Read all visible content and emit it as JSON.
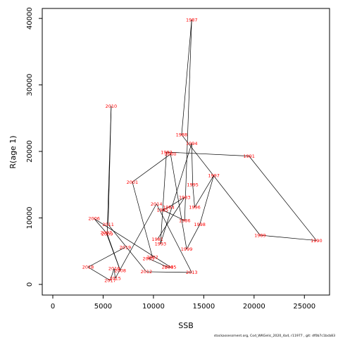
{
  "chart_data": {
    "type": "line",
    "xlabel": "SSB",
    "ylabel": "R(age 1)",
    "xlim": [
      -1050,
      27500
    ],
    "ylim": [
      -1600,
      41500
    ],
    "x_ticks": [
      0,
      5000,
      10000,
      15000,
      20000,
      25000
    ],
    "x_tick_labels": [
      "0",
      "5000",
      "10000",
      "15000",
      "20000",
      "25000"
    ],
    "y_ticks": [
      0,
      10000,
      20000,
      30000,
      40000
    ],
    "y_tick_labels": [
      "0",
      "10000",
      "20000",
      "30000",
      "40000"
    ],
    "line_color": "#000000",
    "label_color": "#ff0000",
    "footnote": "stockassessment.org, Cod_WKGelic_2020_4a4, r11977 , git: df0b7c1bcb83",
    "points": [
      {
        "label": "1987",
        "x": 13800,
        "y": 39800
      },
      {
        "label": "1988",
        "x": 12800,
        "y": 22500
      },
      {
        "label": "1989",
        "x": 20600,
        "y": 7400
      },
      {
        "label": "1990",
        "x": 26200,
        "y": 6600
      },
      {
        "label": "1991",
        "x": 19500,
        "y": 19300
      },
      {
        "label": "1992",
        "x": 11300,
        "y": 19900
      },
      {
        "label": "1993",
        "x": 10700,
        "y": 6100
      },
      {
        "label": "1994",
        "x": 13800,
        "y": 21200
      },
      {
        "label": "1995",
        "x": 13900,
        "y": 15000
      },
      {
        "label": "1996",
        "x": 14100,
        "y": 11600
      },
      {
        "label": "1997",
        "x": 16000,
        "y": 16400
      },
      {
        "label": "1998",
        "x": 14600,
        "y": 9000
      },
      {
        "label": "1999",
        "x": 13300,
        "y": 5300
      },
      {
        "label": "2000",
        "x": 11700,
        "y": 19600
      },
      {
        "label": "2001",
        "x": 7900,
        "y": 15400
      },
      {
        "label": "2002",
        "x": 9900,
        "y": 4100
      },
      {
        "label": "2003",
        "x": 9500,
        "y": 3900
      },
      {
        "label": "2004",
        "x": 11400,
        "y": 2600
      },
      {
        "label": "2005",
        "x": 11700,
        "y": 2600
      },
      {
        "label": "2006",
        "x": 4100,
        "y": 9900
      },
      {
        "label": "2007",
        "x": 5300,
        "y": 7800
      },
      {
        "label": "2008",
        "x": 6700,
        "y": 2100
      },
      {
        "label": "2009",
        "x": 5400,
        "y": 7600
      },
      {
        "label": "2010",
        "x": 5800,
        "y": 26800
      },
      {
        "label": "2011",
        "x": 5500,
        "y": 9000
      },
      {
        "label": "2012",
        "x": 9300,
        "y": 1900
      },
      {
        "label": "2013",
        "x": 13800,
        "y": 1800
      },
      {
        "label": "2014",
        "x": 10300,
        "y": 12100
      },
      {
        "label": "2015",
        "x": 6200,
        "y": 900
      },
      {
        "label": "2016",
        "x": 6100,
        "y": 2400
      },
      {
        "label": "2017",
        "x": 5700,
        "y": 600
      },
      {
        "label": "2018",
        "x": 3500,
        "y": 2600
      },
      {
        "label": "2019",
        "x": 7200,
        "y": 5600
      },
      {
        "label": "1985",
        "x": 10900,
        "y": 11200
      },
      {
        "label": "1986",
        "x": 13100,
        "y": 9600
      },
      {
        "label": "1983",
        "x": 13100,
        "y": 13100
      },
      {
        "label": "1984",
        "x": 11500,
        "y": 11600
      },
      {
        "label": "1981",
        "x": 10400,
        "y": 6800
      }
    ]
  }
}
